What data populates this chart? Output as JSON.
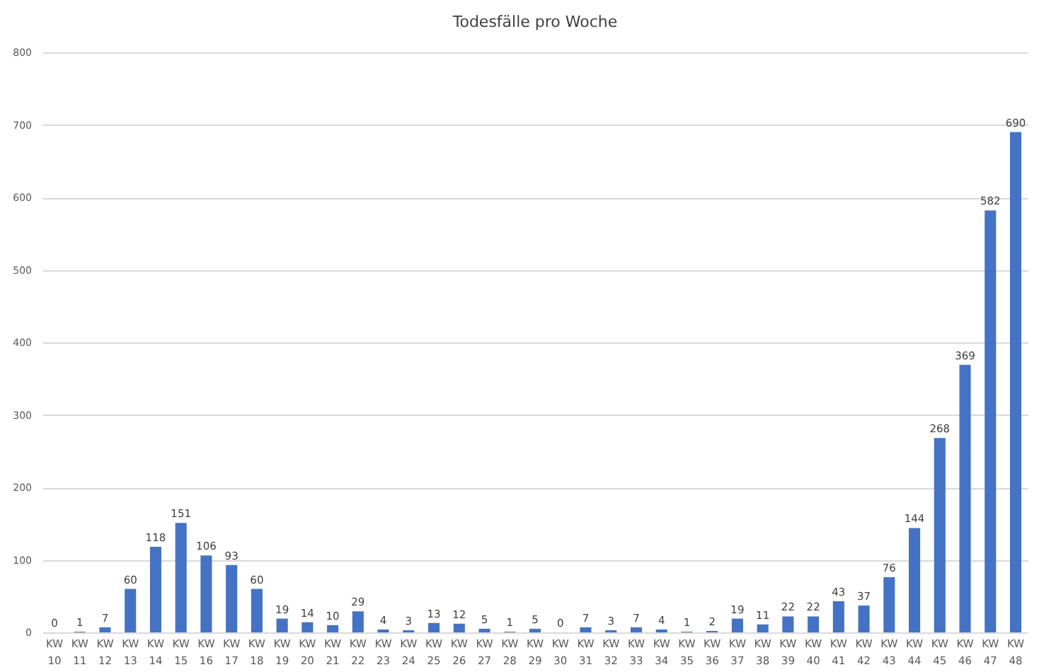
{
  "chart_data": {
    "type": "bar",
    "title": "Todesfälle pro Woche",
    "categories": [
      "KW 10",
      "KW 11",
      "KW 12",
      "KW 13",
      "KW 14",
      "KW 15",
      "KW 16",
      "KW 17",
      "KW 18",
      "KW 19",
      "KW 20",
      "KW 21",
      "KW 22",
      "KW 23",
      "KW 24",
      "KW 25",
      "KW 26",
      "KW 27",
      "KW 28",
      "KW 29",
      "KW 30",
      "KW 31",
      "KW 32",
      "KW 33",
      "KW 34",
      "KW 35",
      "KW 36",
      "KW 37",
      "KW 38",
      "KW 39",
      "KW 40",
      "KW 41",
      "KW 42",
      "KW 43",
      "KW 44",
      "KW 45",
      "KW 46",
      "KW 47",
      "KW 48"
    ],
    "values": [
      0,
      1,
      7,
      60,
      118,
      151,
      106,
      93,
      60,
      19,
      14,
      10,
      29,
      4,
      3,
      13,
      12,
      5,
      1,
      5,
      0,
      7,
      3,
      7,
      4,
      1,
      2,
      19,
      11,
      22,
      22,
      43,
      37,
      76,
      144,
      268,
      369,
      582,
      690
    ],
    "color": "#4472c4",
    "ylim": [
      0,
      800
    ],
    "yticks": [
      0,
      100,
      200,
      300,
      400,
      500,
      600,
      700,
      800
    ],
    "grid": "y",
    "data_labels": true
  }
}
